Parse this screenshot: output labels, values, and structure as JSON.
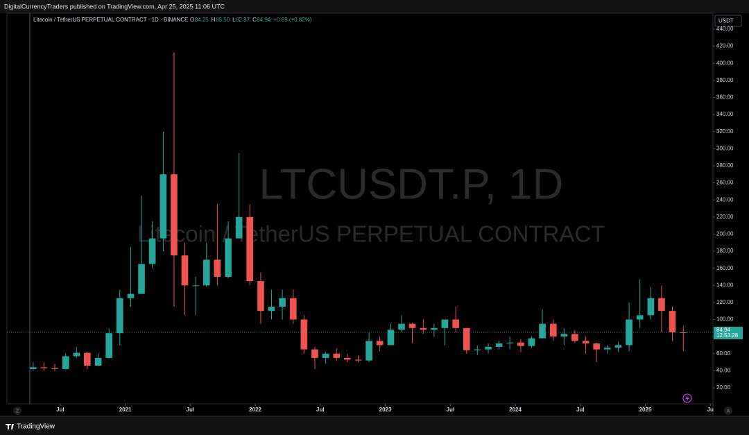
{
  "chart_data": {
    "type": "candlestick",
    "publisher": "DigitalCurrencyTraders published on TradingView.com, Apr 25, 2025 11:06 UTC",
    "title": "Litecoin / TetherUS PERPETUAL CONTRACT · 1D · BINANCE",
    "ohlc_letters": [
      "O",
      "H",
      "L",
      "C"
    ],
    "ohlc_values": [
      "84.25",
      "85.50",
      "82.87",
      "84.94"
    ],
    "change": "+0.69 (+0.82%)",
    "watermark": "LTCUSDT.P, 1D",
    "watermark_subtitle": "Litecoin / TetherUS PERPETUAL CONTRACT",
    "currency": "USDT",
    "last_price": 84.94,
    "countdown": "12:53:28",
    "brand": "TradingView",
    "left_button": "Z",
    "right_button": "A",
    "up_color": "#26a69a",
    "down_color": "#ef5350",
    "xlim": [
      2020.09,
      2025.52
    ],
    "ylim": [
      1.3,
      458.7
    ],
    "xticks": [
      {
        "value": 2020.5,
        "label": "Jul"
      },
      2021,
      {
        "value": 2021.5,
        "label": "Jul"
      },
      2022,
      {
        "value": 2022.5,
        "label": "Jul"
      },
      2023,
      {
        "value": 2023.5,
        "label": "Jul"
      },
      2024,
      {
        "value": 2024.5,
        "label": "Jul"
      },
      2025,
      {
        "value": 2025.5,
        "label": "Ju"
      }
    ],
    "yticks": [
      {
        "value": 20,
        "label": "20.00"
      },
      {
        "value": 40,
        "label": "40.00"
      },
      {
        "value": 60,
        "label": "60.00"
      },
      {
        "value": 80,
        "label": "80.00"
      },
      {
        "value": 100,
        "label": "100.00"
      },
      {
        "value": 120,
        "label": "120.00"
      },
      {
        "value": 140,
        "label": "140.00"
      },
      {
        "value": 160,
        "label": "160.00"
      },
      {
        "value": 180,
        "label": "180.00"
      },
      {
        "value": 200,
        "label": "200.00"
      },
      {
        "value": 220,
        "label": "220.00"
      },
      {
        "value": 240,
        "label": "240.00"
      },
      {
        "value": 260,
        "label": "260.00"
      },
      {
        "value": 280,
        "label": "280.00"
      },
      {
        "value": 300,
        "label": "300.00"
      },
      {
        "value": 320,
        "label": "320.00"
      },
      {
        "value": 340,
        "label": "340.00"
      },
      {
        "value": 360,
        "label": "360.00"
      },
      {
        "value": 380,
        "label": "380.00"
      },
      {
        "value": 400,
        "label": "400.00"
      },
      {
        "value": 420,
        "label": "420.00"
      },
      {
        "value": 440,
        "label": "440.00"
      }
    ],
    "x": [
      2020.292,
      2020.375,
      2020.458,
      2020.542,
      2020.625,
      2020.708,
      2020.792,
      2020.875,
      2020.958,
      2021.042,
      2021.125,
      2021.208,
      2021.292,
      2021.375,
      2021.458,
      2021.542,
      2021.625,
      2021.708,
      2021.792,
      2021.875,
      2021.958,
      2022.042,
      2022.125,
      2022.208,
      2022.292,
      2022.375,
      2022.458,
      2022.542,
      2022.625,
      2022.708,
      2022.792,
      2022.875,
      2022.958,
      2023.042,
      2023.125,
      2023.208,
      2023.292,
      2023.375,
      2023.458,
      2023.542,
      2023.625,
      2023.708,
      2023.792,
      2023.875,
      2023.958,
      2024.042,
      2024.125,
      2024.208,
      2024.292,
      2024.375,
      2024.458,
      2024.542,
      2024.625,
      2024.708,
      2024.792,
      2024.875,
      2024.958,
      2025.042,
      2025.125,
      2025.208,
      2025.292
    ],
    "open": [
      42,
      44,
      43,
      42,
      57,
      61,
      46,
      55,
      84,
      125,
      130,
      165,
      195,
      270,
      175,
      140,
      140,
      170,
      150,
      195,
      220,
      145,
      110,
      115,
      125,
      100,
      65,
      55,
      60,
      55,
      53,
      52,
      75,
      70,
      88,
      95,
      90,
      88,
      90,
      100,
      90,
      64,
      65,
      68,
      72,
      73,
      69,
      78,
      95,
      80,
      83,
      75,
      72,
      65,
      67,
      70,
      100,
      105,
      125,
      110,
      85
    ],
    "high": [
      50,
      50,
      48,
      60,
      68,
      62,
      60,
      90,
      135,
      185,
      245,
      215,
      320,
      413,
      190,
      150,
      190,
      235,
      215,
      295,
      235,
      155,
      135,
      135,
      135,
      105,
      68,
      62,
      66,
      60,
      58,
      85,
      80,
      95,
      105,
      96,
      100,
      95,
      100,
      115,
      90,
      70,
      72,
      75,
      80,
      77,
      80,
      112,
      100,
      90,
      87,
      80,
      73,
      70,
      74,
      120,
      147,
      138,
      140,
      115,
      92
    ],
    "low": [
      40,
      40,
      40,
      41,
      55,
      42,
      45,
      54,
      70,
      115,
      130,
      160,
      180,
      115,
      105,
      105,
      138,
      140,
      148,
      195,
      140,
      95,
      100,
      100,
      95,
      60,
      42,
      48,
      52,
      50,
      50,
      50,
      63,
      70,
      85,
      72,
      83,
      80,
      70,
      85,
      60,
      58,
      60,
      65,
      65,
      62,
      67,
      78,
      75,
      70,
      72,
      60,
      50,
      60,
      62,
      63,
      90,
      100,
      85,
      75,
      63
    ],
    "close": [
      44,
      43,
      42,
      57,
      61,
      46,
      55,
      84,
      125,
      130,
      165,
      195,
      270,
      175,
      140,
      140,
      170,
      150,
      195,
      220,
      145,
      110,
      115,
      125,
      100,
      65,
      55,
      60,
      55,
      53,
      52,
      75,
      70,
      88,
      95,
      90,
      88,
      90,
      100,
      90,
      64,
      65,
      68,
      72,
      73,
      69,
      78,
      95,
      80,
      83,
      75,
      72,
      65,
      67,
      70,
      100,
      105,
      125,
      110,
      85,
      84.94
    ]
  }
}
